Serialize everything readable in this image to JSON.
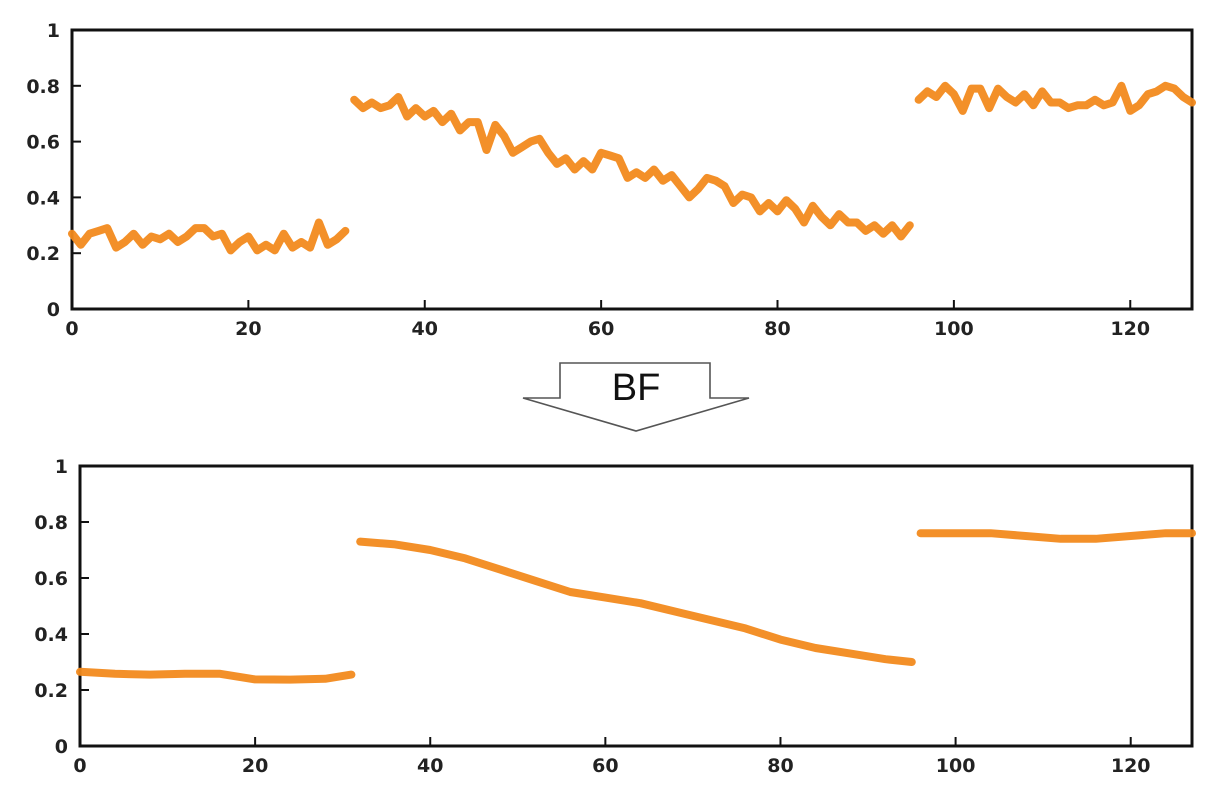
{
  "arrow": {
    "label": "BF"
  },
  "colors": {
    "series": "#f28a1e",
    "axis": "#111111"
  },
  "chart_data": [
    {
      "type": "line",
      "title": "",
      "xlabel": "",
      "ylabel": "",
      "xlim": [
        0,
        127
      ],
      "ylim": [
        0,
        1
      ],
      "x_ticks": [
        0,
        20,
        40,
        60,
        80,
        100,
        120
      ],
      "x_tick_labels": [
        "0",
        "20",
        "40",
        "60",
        "80",
        "100",
        "120"
      ],
      "y_ticks": [
        0,
        0.2,
        0.4,
        0.6,
        0.8,
        1
      ],
      "y_tick_labels": [
        "0",
        "0.2",
        "0.4",
        "0.6",
        "0.8",
        "1"
      ],
      "grid": false,
      "legend": "none",
      "series": [
        {
          "x": [
            0,
            1,
            2,
            3,
            4,
            5,
            6,
            7,
            8,
            9,
            10,
            11,
            12,
            13,
            14,
            15,
            16,
            17,
            18,
            19,
            20,
            21,
            22,
            23,
            24,
            25,
            26,
            27,
            28,
            29,
            30,
            31
          ],
          "values": [
            0.27,
            0.23,
            0.27,
            0.28,
            0.29,
            0.22,
            0.24,
            0.27,
            0.23,
            0.26,
            0.25,
            0.27,
            0.24,
            0.26,
            0.29,
            0.29,
            0.26,
            0.27,
            0.21,
            0.24,
            0.26,
            0.21,
            0.23,
            0.21,
            0.27,
            0.22,
            0.24,
            0.22,
            0.31,
            0.23,
            0.25,
            0.28
          ]
        },
        {
          "x": [
            32,
            33,
            34,
            35,
            36,
            37,
            38,
            39,
            40,
            41,
            42,
            43,
            44,
            45,
            46,
            47,
            48,
            49,
            50,
            51,
            52,
            53,
            54,
            55,
            56,
            57,
            58,
            59,
            60,
            61,
            62,
            63,
            64,
            65,
            66,
            67,
            68,
            69,
            70,
            71,
            72,
            73,
            74,
            75,
            76,
            77,
            78,
            79,
            80,
            81,
            82,
            83,
            84,
            85,
            86,
            87,
            88,
            89,
            90,
            91,
            92,
            93,
            94,
            95
          ],
          "values": [
            0.75,
            0.72,
            0.74,
            0.72,
            0.73,
            0.76,
            0.69,
            0.72,
            0.69,
            0.71,
            0.67,
            0.7,
            0.64,
            0.67,
            0.67,
            0.57,
            0.66,
            0.62,
            0.56,
            0.58,
            0.6,
            0.61,
            0.56,
            0.52,
            0.54,
            0.5,
            0.53,
            0.5,
            0.56,
            0.55,
            0.54,
            0.47,
            0.49,
            0.47,
            0.5,
            0.46,
            0.48,
            0.44,
            0.4,
            0.43,
            0.47,
            0.46,
            0.44,
            0.38,
            0.41,
            0.4,
            0.35,
            0.38,
            0.35,
            0.39,
            0.36,
            0.31,
            0.37,
            0.33,
            0.3,
            0.34,
            0.31,
            0.31,
            0.28,
            0.3,
            0.27,
            0.3,
            0.26,
            0.3
          ]
        },
        {
          "x": [
            96,
            97,
            98,
            99,
            100,
            101,
            102,
            103,
            104,
            105,
            106,
            107,
            108,
            109,
            110,
            111,
            112,
            113,
            114,
            115,
            116,
            117,
            118,
            119,
            120,
            121,
            122,
            123,
            124,
            125,
            126,
            127
          ],
          "values": [
            0.75,
            0.78,
            0.76,
            0.8,
            0.77,
            0.71,
            0.79,
            0.79,
            0.72,
            0.79,
            0.76,
            0.74,
            0.77,
            0.73,
            0.78,
            0.74,
            0.74,
            0.72,
            0.73,
            0.73,
            0.75,
            0.73,
            0.74,
            0.8,
            0.71,
            0.73,
            0.77,
            0.78,
            0.8,
            0.79,
            0.76,
            0.74
          ]
        }
      ]
    },
    {
      "type": "line",
      "title": "",
      "xlabel": "",
      "ylabel": "",
      "xlim": [
        0,
        127
      ],
      "ylim": [
        0,
        1
      ],
      "x_ticks": [
        0,
        20,
        40,
        60,
        80,
        100,
        120
      ],
      "x_tick_labels": [
        "0",
        "20",
        "40",
        "60",
        "80",
        "100",
        "120"
      ],
      "y_ticks": [
        0,
        0.2,
        0.4,
        0.6,
        0.8,
        1
      ],
      "y_tick_labels": [
        "0",
        "0.2",
        "0.4",
        "0.6",
        "0.8",
        "1"
      ],
      "grid": false,
      "legend": "none",
      "series": [
        {
          "x": [
            0,
            4,
            8,
            12,
            16,
            20,
            24,
            28,
            31
          ],
          "values": [
            0.265,
            0.258,
            0.255,
            0.258,
            0.258,
            0.238,
            0.237,
            0.24,
            0.255
          ]
        },
        {
          "x": [
            32,
            36,
            40,
            44,
            48,
            52,
            56,
            60,
            64,
            68,
            72,
            76,
            80,
            84,
            88,
            92,
            95
          ],
          "values": [
            0.73,
            0.72,
            0.7,
            0.67,
            0.63,
            0.59,
            0.55,
            0.53,
            0.51,
            0.48,
            0.45,
            0.42,
            0.38,
            0.35,
            0.33,
            0.31,
            0.3
          ]
        },
        {
          "x": [
            96,
            100,
            104,
            108,
            112,
            116,
            120,
            124,
            127
          ],
          "values": [
            0.76,
            0.76,
            0.76,
            0.75,
            0.74,
            0.74,
            0.75,
            0.76,
            0.76
          ]
        }
      ]
    }
  ]
}
